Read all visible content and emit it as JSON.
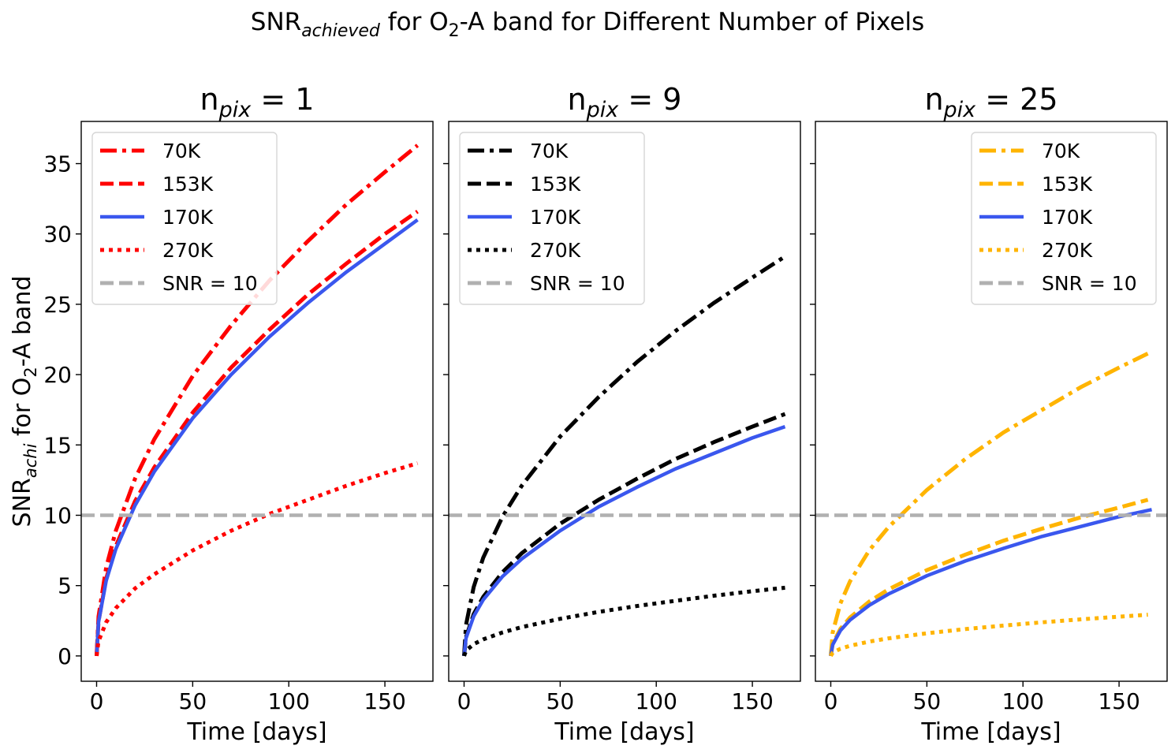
{
  "figure": {
    "suptitle": {
      "pre": "SNR",
      "sub": "achieved",
      "mid": " for O",
      "sub2": "2",
      "post": "-A band for Different Number of Pixels"
    },
    "ylabel": {
      "pre": "SNR",
      "sub": "achi",
      "mid": " for O",
      "sub2": "2",
      "post": "-A band"
    },
    "xlabel": "Time [days]",
    "line_width_note": "thick lines"
  },
  "chart_data": [
    {
      "type": "line",
      "title_pre": "n",
      "title_sub": "pix",
      "title_post": " = 1",
      "xlabel": "Time [days]",
      "xlim": [
        -8,
        175
      ],
      "ylim": [
        -1.8,
        38
      ],
      "xticks": [
        0,
        50,
        100,
        150
      ],
      "yticks": [
        0,
        5,
        10,
        15,
        20,
        25,
        30,
        35
      ],
      "legend_position": "top-left",
      "series": [
        {
          "name": "70K",
          "color": "#ff0000",
          "style": "dashdot",
          "x": [
            0,
            1,
            5,
            10,
            20,
            30,
            50,
            70,
            90,
            110,
            130,
            150,
            167
          ],
          "y": [
            0,
            2.8,
            6.3,
            8.9,
            12.6,
            15.4,
            19.9,
            23.5,
            26.7,
            29.5,
            32.1,
            34.4,
            36.3
          ]
        },
        {
          "name": "153K",
          "color": "#ff0000",
          "style": "dashed",
          "x": [
            0,
            1,
            5,
            10,
            20,
            30,
            50,
            70,
            90,
            110,
            130,
            150,
            167
          ],
          "y": [
            0,
            2.45,
            5.5,
            7.8,
            11.0,
            13.4,
            17.3,
            20.5,
            23.2,
            25.7,
            27.9,
            30.0,
            31.6
          ]
        },
        {
          "name": "170K",
          "color": "#3a57ee",
          "style": "solid",
          "x": [
            0,
            1,
            5,
            10,
            20,
            30,
            50,
            70,
            90,
            110,
            130,
            150,
            167
          ],
          "y": [
            0,
            2.4,
            5.35,
            7.6,
            10.7,
            13.1,
            16.9,
            20.0,
            22.7,
            25.1,
            27.3,
            29.3,
            31.0
          ]
        },
        {
          "name": "270K",
          "color": "#ff0000",
          "style": "dotted",
          "x": [
            0,
            1,
            5,
            10,
            20,
            30,
            50,
            70,
            90,
            110,
            130,
            150,
            167
          ],
          "y": [
            0,
            1.05,
            2.4,
            3.4,
            4.8,
            5.8,
            7.5,
            8.9,
            10.1,
            11.1,
            12.1,
            13.0,
            13.7
          ]
        },
        {
          "name": "SNR = 10",
          "color": "#b0b0b0",
          "style": "hline",
          "y_value": 10
        }
      ]
    },
    {
      "type": "line",
      "title_pre": "n",
      "title_sub": "pix",
      "title_post": " = 9",
      "xlabel": "Time [days]",
      "xlim": [
        -8,
        175
      ],
      "ylim": [
        -1.8,
        38
      ],
      "xticks": [
        0,
        50,
        100,
        150
      ],
      "yticks": [
        0,
        5,
        10,
        15,
        20,
        25,
        30,
        35
      ],
      "legend_position": "top-left",
      "series": [
        {
          "name": "70K",
          "color": "#000000",
          "style": "dashdot",
          "x": [
            0,
            1,
            5,
            10,
            20,
            30,
            50,
            70,
            90,
            110,
            130,
            150,
            167
          ],
          "y": [
            0,
            2.2,
            4.9,
            7.0,
            9.9,
            12.1,
            15.6,
            18.4,
            20.9,
            23.1,
            25.1,
            26.9,
            28.4
          ]
        },
        {
          "name": "153K",
          "color": "#000000",
          "style": "dashed",
          "x": [
            0,
            1,
            5,
            10,
            20,
            30,
            50,
            70,
            90,
            110,
            130,
            150,
            167
          ],
          "y": [
            0,
            1.33,
            2.97,
            4.2,
            5.95,
            7.3,
            9.4,
            11.1,
            12.6,
            14.0,
            15.2,
            16.3,
            17.2
          ]
        },
        {
          "name": "170K",
          "color": "#3a57ee",
          "style": "solid",
          "x": [
            0,
            1,
            5,
            10,
            20,
            30,
            50,
            70,
            90,
            110,
            130,
            150,
            167
          ],
          "y": [
            0,
            1.26,
            2.82,
            4.0,
            5.65,
            6.9,
            8.9,
            10.6,
            12.0,
            13.3,
            14.4,
            15.5,
            16.3
          ]
        },
        {
          "name": "270K",
          "color": "#000000",
          "style": "dotted",
          "x": [
            0,
            1,
            5,
            10,
            20,
            30,
            50,
            70,
            90,
            110,
            130,
            150,
            167
          ],
          "y": [
            0,
            0.37,
            0.84,
            1.18,
            1.67,
            2.05,
            2.64,
            3.13,
            3.55,
            3.92,
            4.28,
            4.6,
            4.85
          ]
        },
        {
          "name": "SNR = 10",
          "color": "#b0b0b0",
          "style": "hline",
          "y_value": 10
        }
      ]
    },
    {
      "type": "line",
      "title_pre": "n",
      "title_sub": "pix",
      "title_post": " = 25",
      "xlabel": "Time [days]",
      "xlim": [
        -8,
        175
      ],
      "ylim": [
        -1.8,
        38
      ],
      "xticks": [
        0,
        50,
        100,
        150
      ],
      "yticks": [
        0,
        5,
        10,
        15,
        20,
        25,
        30,
        35
      ],
      "legend_position": "top-right",
      "series": [
        {
          "name": "70K",
          "color": "#ffb400",
          "style": "dashdot",
          "x": [
            0,
            1,
            5,
            10,
            20,
            30,
            50,
            70,
            90,
            110,
            130,
            150,
            165
          ],
          "y": [
            0,
            1.67,
            3.73,
            5.3,
            7.5,
            9.15,
            11.8,
            14.0,
            15.9,
            17.5,
            19.1,
            20.5,
            21.5
          ]
        },
        {
          "name": "153K",
          "color": "#ffb400",
          "style": "dashed",
          "x": [
            0,
            1,
            5,
            10,
            20,
            30,
            50,
            70,
            90,
            110,
            130,
            150,
            165
          ],
          "y": [
            0,
            0.86,
            1.93,
            2.73,
            3.86,
            4.73,
            6.1,
            7.2,
            8.2,
            9.05,
            9.85,
            10.55,
            11.1
          ]
        },
        {
          "name": "170K",
          "color": "#3a57ee",
          "style": "solid",
          "x": [
            0,
            1,
            5,
            10,
            20,
            30,
            50,
            70,
            90,
            110,
            130,
            150,
            167
          ],
          "y": [
            0,
            0.8,
            1.8,
            2.55,
            3.6,
            4.4,
            5.7,
            6.75,
            7.65,
            8.5,
            9.2,
            9.9,
            10.4
          ]
        },
        {
          "name": "270K",
          "color": "#ffb400",
          "style": "dotted",
          "x": [
            0,
            1,
            5,
            10,
            20,
            30,
            50,
            70,
            90,
            110,
            130,
            150,
            165
          ],
          "y": [
            0,
            0.23,
            0.51,
            0.72,
            1.02,
            1.25,
            1.61,
            1.91,
            2.16,
            2.39,
            2.6,
            2.79,
            2.93
          ]
        },
        {
          "name": "SNR = 10",
          "color": "#b0b0b0",
          "style": "hline",
          "y_value": 10
        }
      ]
    }
  ]
}
